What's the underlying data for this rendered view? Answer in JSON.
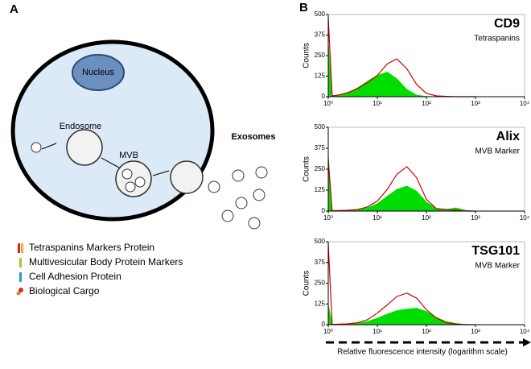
{
  "figure": {
    "panel_a_label": "A",
    "panel_b_label": "B",
    "xlabel": "Relative fluorescence intensity (logarithm scale)"
  },
  "diagram": {
    "nucleus": "Nucleus",
    "endosome": "Endosome",
    "mvb": "MVB",
    "exosomes": "Exosomes",
    "legend": [
      "Tetraspanins Markers Protein",
      "Multivesicular Body Protein Markers",
      "Cell Adhesion Protein",
      "Biological Cargo"
    ]
  },
  "chart_data": [
    {
      "type": "area",
      "title": "CD9",
      "subtitle": "Tetraspanins",
      "ylabel": "Counts",
      "xscale": "log",
      "x": [
        1,
        1.2,
        1.6,
        2.5,
        4,
        6.3,
        10,
        16,
        25,
        40,
        63,
        100,
        160,
        250,
        400,
        630,
        1000
      ],
      "series": [
        {
          "color": "#00dd00",
          "fill": true,
          "values": [
            340,
            5,
            10,
            25,
            55,
            95,
            130,
            150,
            110,
            45,
            10,
            2,
            0,
            0,
            0,
            0,
            0
          ]
        },
        {
          "color": "#cc0000",
          "fill": false,
          "values": [
            480,
            5,
            10,
            25,
            50,
            85,
            130,
            200,
            230,
            170,
            75,
            20,
            5,
            2,
            0,
            0,
            0
          ]
        }
      ],
      "xlim": [
        1,
        10000
      ],
      "ylim": [
        0,
        500
      ],
      "yticks": [
        0,
        125,
        250,
        375,
        500
      ],
      "xticks": [
        {
          "value": 1,
          "label": "10⁰"
        },
        {
          "value": 10,
          "label": "10¹"
        },
        {
          "value": 100,
          "label": "10²"
        },
        {
          "value": 1000,
          "label": "10³"
        },
        {
          "value": 10000,
          "label": "10⁴"
        }
      ]
    },
    {
      "type": "area",
      "title": "Alix",
      "subtitle": "MVB Marker",
      "ylabel": "Counts",
      "xscale": "log",
      "x": [
        1,
        1.2,
        1.6,
        2.5,
        4,
        6.3,
        10,
        16,
        25,
        40,
        63,
        100,
        160,
        250,
        400,
        630,
        1000
      ],
      "series": [
        {
          "color": "#00dd00",
          "fill": true,
          "values": [
            350,
            2,
            3,
            5,
            10,
            20,
            45,
            90,
            130,
            150,
            120,
            55,
            15,
            10,
            20,
            5,
            0
          ]
        },
        {
          "color": "#cc0000",
          "fill": false,
          "values": [
            300,
            2,
            3,
            5,
            10,
            25,
            60,
            130,
            220,
            265,
            200,
            70,
            15,
            10,
            5,
            0,
            0
          ]
        }
      ],
      "xlim": [
        1,
        10000
      ],
      "ylim": [
        0,
        500
      ],
      "yticks": [
        0,
        125,
        250,
        375,
        500
      ],
      "xticks": [
        {
          "value": 1,
          "label": "10⁰"
        },
        {
          "value": 10,
          "label": "10¹"
        },
        {
          "value": 100,
          "label": "10²"
        },
        {
          "value": 1000,
          "label": "10³"
        },
        {
          "value": 10000,
          "label": "10⁴"
        }
      ]
    },
    {
      "type": "area",
      "title": "TSG101",
      "subtitle": "MVB Marker",
      "ylabel": "Counts",
      "xscale": "log",
      "x": [
        1,
        1.2,
        1.6,
        2.5,
        4,
        6.3,
        10,
        16,
        25,
        40,
        63,
        100,
        160,
        250,
        400,
        630,
        1000
      ],
      "series": [
        {
          "color": "#00dd00",
          "fill": true,
          "values": [
            125,
            2,
            3,
            5,
            10,
            20,
            40,
            65,
            85,
            95,
            100,
            80,
            45,
            20,
            8,
            2,
            0
          ]
        },
        {
          "color": "#cc0000",
          "fill": false,
          "values": [
            490,
            2,
            3,
            5,
            12,
            30,
            70,
            120,
            170,
            190,
            160,
            90,
            40,
            12,
            3,
            0,
            0
          ]
        }
      ],
      "xlim": [
        1,
        10000
      ],
      "ylim": [
        0,
        500
      ],
      "yticks": [
        0,
        125,
        250,
        375,
        500
      ],
      "xticks": [
        {
          "value": 1,
          "label": "10⁰"
        },
        {
          "value": 10,
          "label": "10¹"
        },
        {
          "value": 100,
          "label": "10²"
        },
        {
          "value": 1000,
          "label": "10³"
        },
        {
          "value": 10000,
          "label": "10⁴"
        }
      ]
    }
  ]
}
